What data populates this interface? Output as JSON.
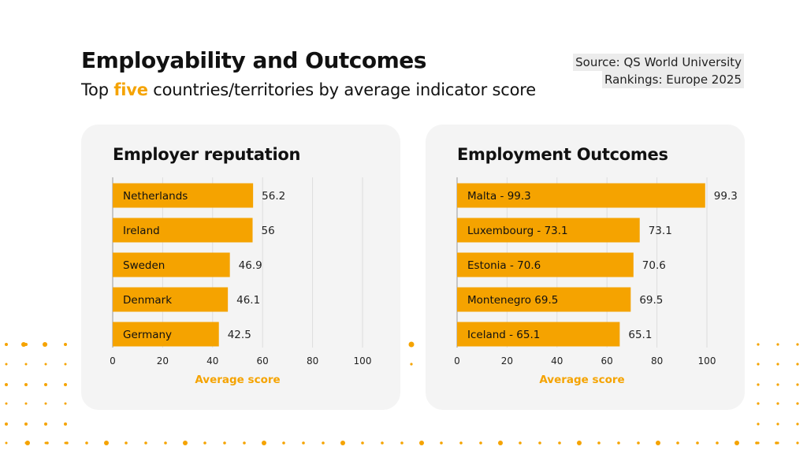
{
  "header": {
    "title": "Employability and Outcomes",
    "subtitle_pre": "Top ",
    "subtitle_highlight": "five",
    "subtitle_post": " countries/territories by average indicator score",
    "source_line1": "Source: QS World University",
    "source_line2": "Rankings: Europe 2025"
  },
  "colors": {
    "bar": "#f5a300",
    "accent_text": "#f5a300",
    "panel_bg": "#f4f4f4",
    "grid": "#dddddd",
    "dots": "#f5a300"
  },
  "chart_data": [
    {
      "type": "bar",
      "orientation": "horizontal",
      "title": "Employer reputation",
      "categories": [
        "Netherlands",
        "Ireland",
        "Sweden",
        "Denmark",
        "Germany"
      ],
      "values": [
        56.2,
        56,
        46.9,
        46.1,
        42.5
      ],
      "value_labels": [
        "56.2",
        "56",
        "46.9",
        "46.1",
        "42.5"
      ],
      "xlabel": "Average score",
      "xlim": [
        0,
        100
      ],
      "xticks": [
        "0",
        "20",
        "40",
        "60",
        "80",
        "100"
      ],
      "grid": true
    },
    {
      "type": "bar",
      "orientation": "horizontal",
      "title": "Employment Outcomes",
      "categories": [
        "Malta - 99.3",
        "Luxembourg - 73.1",
        "Estonia - 70.6",
        "Montenegro 69.5",
        "Iceland - 65.1"
      ],
      "values": [
        99.3,
        73.1,
        70.6,
        69.5,
        65.1
      ],
      "value_labels": [
        "99.3",
        "73.1",
        "70.6",
        "69.5",
        "65.1"
      ],
      "xlabel": "Average score",
      "xlim": [
        0,
        100
      ],
      "xticks": [
        "0",
        "20",
        "40",
        "60",
        "80",
        "100"
      ],
      "grid": true
    }
  ]
}
